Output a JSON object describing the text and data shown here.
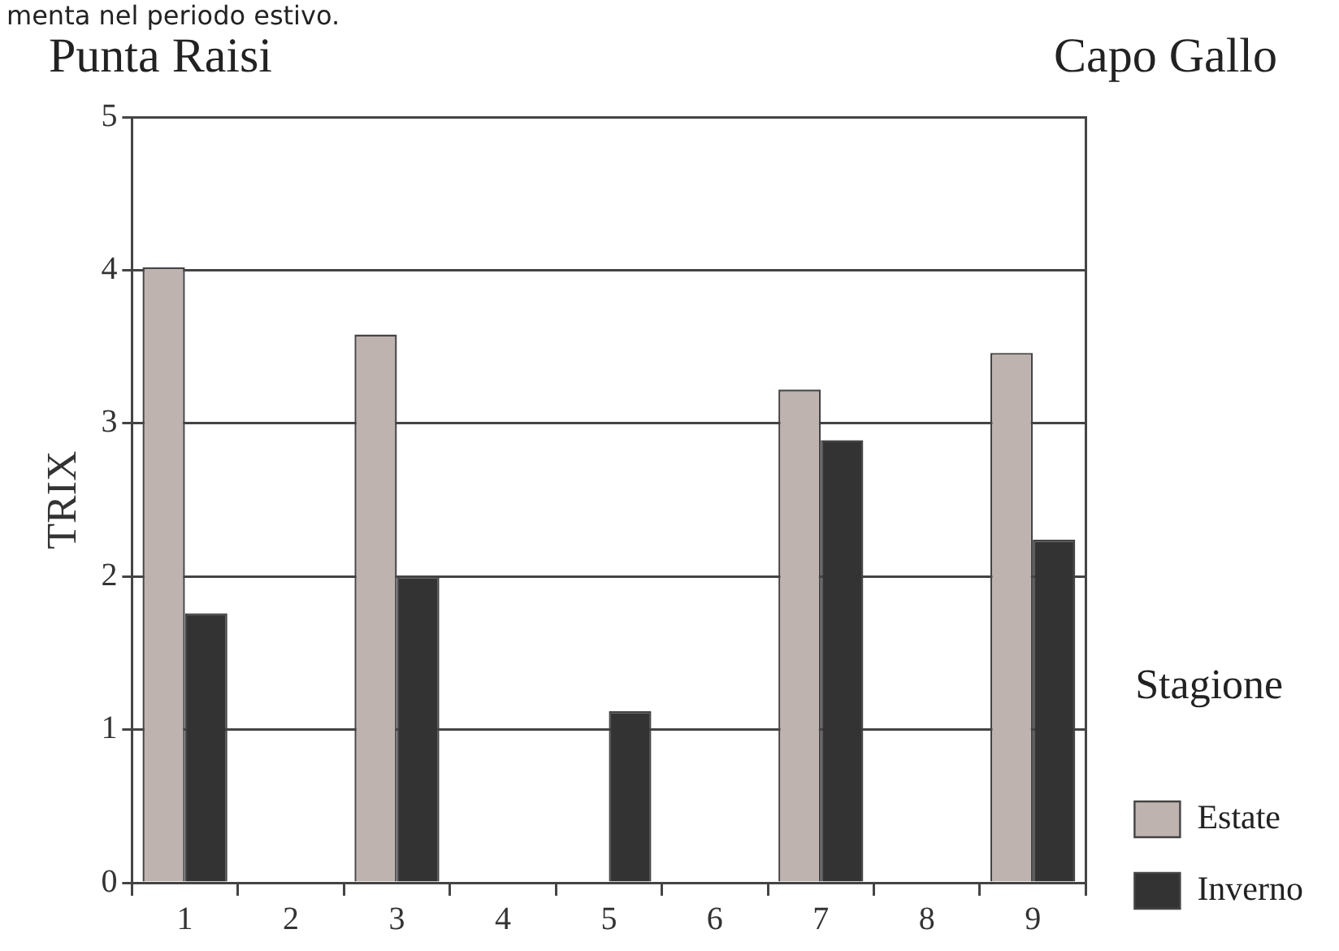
{
  "chart_data": {
    "type": "bar",
    "annotations": [
      "menta nel periodo estivo.",
      "Punta Raisi",
      "Capo Gallo"
    ],
    "ylabel": "TRIX",
    "legend_title": "Stagione",
    "categories": [
      "1",
      "2",
      "3",
      "4",
      "5",
      "6",
      "7",
      "8",
      "9"
    ],
    "series": [
      {
        "name": "Estate",
        "color": "#bfb3b0",
        "values": [
          4.02,
          null,
          3.58,
          null,
          null,
          null,
          3.22,
          null,
          3.46
        ]
      },
      {
        "name": "Inverno",
        "color": "#333333",
        "values": [
          1.76,
          null,
          2.0,
          null,
          1.12,
          null,
          2.89,
          null,
          2.24
        ]
      }
    ],
    "ylim": [
      0,
      5
    ],
    "yticks": [
      0,
      1,
      2,
      3,
      4,
      5
    ],
    "grid": "y",
    "legend": "right bottom"
  }
}
